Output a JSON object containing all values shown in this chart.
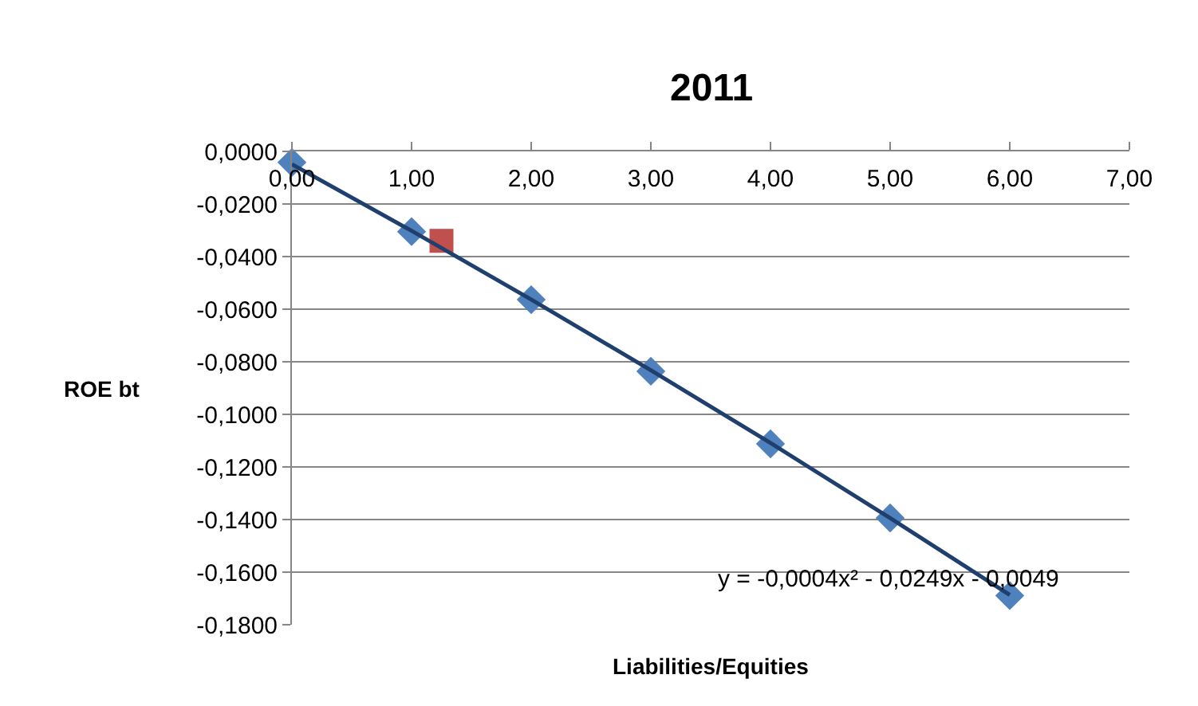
{
  "chart_data": {
    "type": "scatter",
    "title": "2011",
    "xlabel": "Liabilities/Equities",
    "ylabel": "ROE bt",
    "xlim": [
      0,
      7
    ],
    "ylim": [
      -0.18,
      0
    ],
    "xticks": [
      {
        "value": 0,
        "label": "0,00"
      },
      {
        "value": 1,
        "label": "1,00"
      },
      {
        "value": 2,
        "label": "2,00"
      },
      {
        "value": 3,
        "label": "3,00"
      },
      {
        "value": 4,
        "label": "4,00"
      },
      {
        "value": 5,
        "label": "5,00"
      },
      {
        "value": 6,
        "label": "6,00"
      },
      {
        "value": 7,
        "label": "7,00"
      }
    ],
    "yticks": [
      {
        "value": 0,
        "label": "0,0000"
      },
      {
        "value": -0.02,
        "label": "-0,0200"
      },
      {
        "value": -0.04,
        "label": "-0,0400"
      },
      {
        "value": -0.06,
        "label": "-0,0600"
      },
      {
        "value": -0.08,
        "label": "-0,0800"
      },
      {
        "value": -0.1,
        "label": "-0,1000"
      },
      {
        "value": -0.12,
        "label": "-0,1200"
      },
      {
        "value": -0.14,
        "label": "-0,1400"
      },
      {
        "value": -0.16,
        "label": "-0,1600"
      },
      {
        "value": -0.18,
        "label": "-0,1800"
      }
    ],
    "grid": "y",
    "series": [
      {
        "type": "line",
        "color": "#1f3f6e",
        "marker": "none",
        "x": [
          0,
          1,
          2,
          3,
          4,
          5,
          6
        ],
        "values": [
          -0.0049,
          -0.0302,
          -0.0563,
          -0.0832,
          -0.1109,
          -0.1394,
          -0.1687
        ]
      },
      {
        "type": "scatter",
        "color": "#4f81bd",
        "marker": "diamond",
        "x": [
          0,
          1,
          2,
          3,
          4,
          5,
          6
        ],
        "values": [
          -0.0042,
          -0.0305,
          -0.0564,
          -0.0836,
          -0.1112,
          -0.1394,
          -0.1689
        ]
      },
      {
        "type": "scatter",
        "color": "#c0504d",
        "marker": "square",
        "x": [
          1.25
        ],
        "values": [
          -0.034
        ]
      }
    ],
    "annotations": [
      "y = -0,0004x² - 0,0249x - 0,0049"
    ]
  }
}
